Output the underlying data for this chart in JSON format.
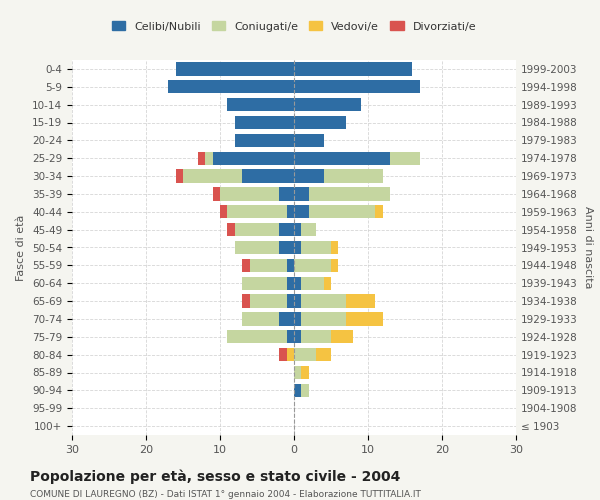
{
  "age_groups": [
    "100+",
    "95-99",
    "90-94",
    "85-89",
    "80-84",
    "75-79",
    "70-74",
    "65-69",
    "60-64",
    "55-59",
    "50-54",
    "45-49",
    "40-44",
    "35-39",
    "30-34",
    "25-29",
    "20-24",
    "15-19",
    "10-14",
    "5-9",
    "0-4"
  ],
  "birth_years": [
    "≤ 1903",
    "1904-1908",
    "1909-1913",
    "1914-1918",
    "1919-1923",
    "1924-1928",
    "1929-1933",
    "1934-1938",
    "1939-1943",
    "1944-1948",
    "1949-1953",
    "1954-1958",
    "1959-1963",
    "1964-1968",
    "1969-1973",
    "1974-1978",
    "1979-1983",
    "1984-1988",
    "1989-1993",
    "1994-1998",
    "1999-2003"
  ],
  "colors": {
    "celibi": "#2e6da4",
    "coniugati": "#c5d6a0",
    "vedovi": "#f5c342",
    "divorziati": "#d9534f"
  },
  "males": {
    "celibi": [
      0,
      0,
      0,
      0,
      0,
      1,
      2,
      1,
      1,
      1,
      2,
      2,
      1,
      2,
      7,
      11,
      8,
      8,
      9,
      17,
      16
    ],
    "coniugati": [
      0,
      0,
      0,
      0,
      0,
      8,
      5,
      5,
      6,
      5,
      6,
      6,
      8,
      8,
      8,
      1,
      0,
      0,
      0,
      0,
      0
    ],
    "vedovi": [
      0,
      0,
      0,
      0,
      1,
      0,
      0,
      0,
      0,
      0,
      0,
      0,
      0,
      0,
      0,
      0,
      0,
      0,
      0,
      0,
      0
    ],
    "divorziati": [
      0,
      0,
      0,
      0,
      1,
      0,
      0,
      1,
      0,
      1,
      0,
      1,
      1,
      1,
      1,
      1,
      0,
      0,
      0,
      0,
      0
    ]
  },
  "females": {
    "nubili": [
      0,
      0,
      1,
      0,
      0,
      1,
      1,
      1,
      1,
      0,
      1,
      1,
      2,
      2,
      4,
      13,
      4,
      7,
      9,
      17,
      16
    ],
    "coniugate": [
      0,
      0,
      1,
      1,
      3,
      4,
      6,
      6,
      3,
      5,
      4,
      2,
      9,
      11,
      8,
      4,
      0,
      0,
      0,
      0,
      0
    ],
    "vedove": [
      0,
      0,
      0,
      1,
      2,
      3,
      5,
      4,
      1,
      1,
      1,
      0,
      1,
      0,
      0,
      0,
      0,
      0,
      0,
      0,
      0
    ],
    "divorziate": [
      0,
      0,
      0,
      0,
      0,
      0,
      0,
      0,
      0,
      0,
      0,
      0,
      0,
      0,
      0,
      0,
      0,
      0,
      0,
      0,
      0
    ]
  },
  "xlim": 30,
  "title": "Popolazione per età, sesso e stato civile - 2004",
  "subtitle": "COMUNE DI LAUREGNO (BZ) - Dati ISTAT 1° gennaio 2004 - Elaborazione TUTTITALIA.IT",
  "ylabel": "Fasce di età",
  "ylabel_right": "Anni di nascita",
  "legend_labels": [
    "Celibi/Nubili",
    "Coniugati/e",
    "Vedovi/e",
    "Divorziati/e"
  ],
  "bg_color": "#f5f5f0",
  "plot_bg": "#ffffff",
  "grid_color": "#cccccc"
}
